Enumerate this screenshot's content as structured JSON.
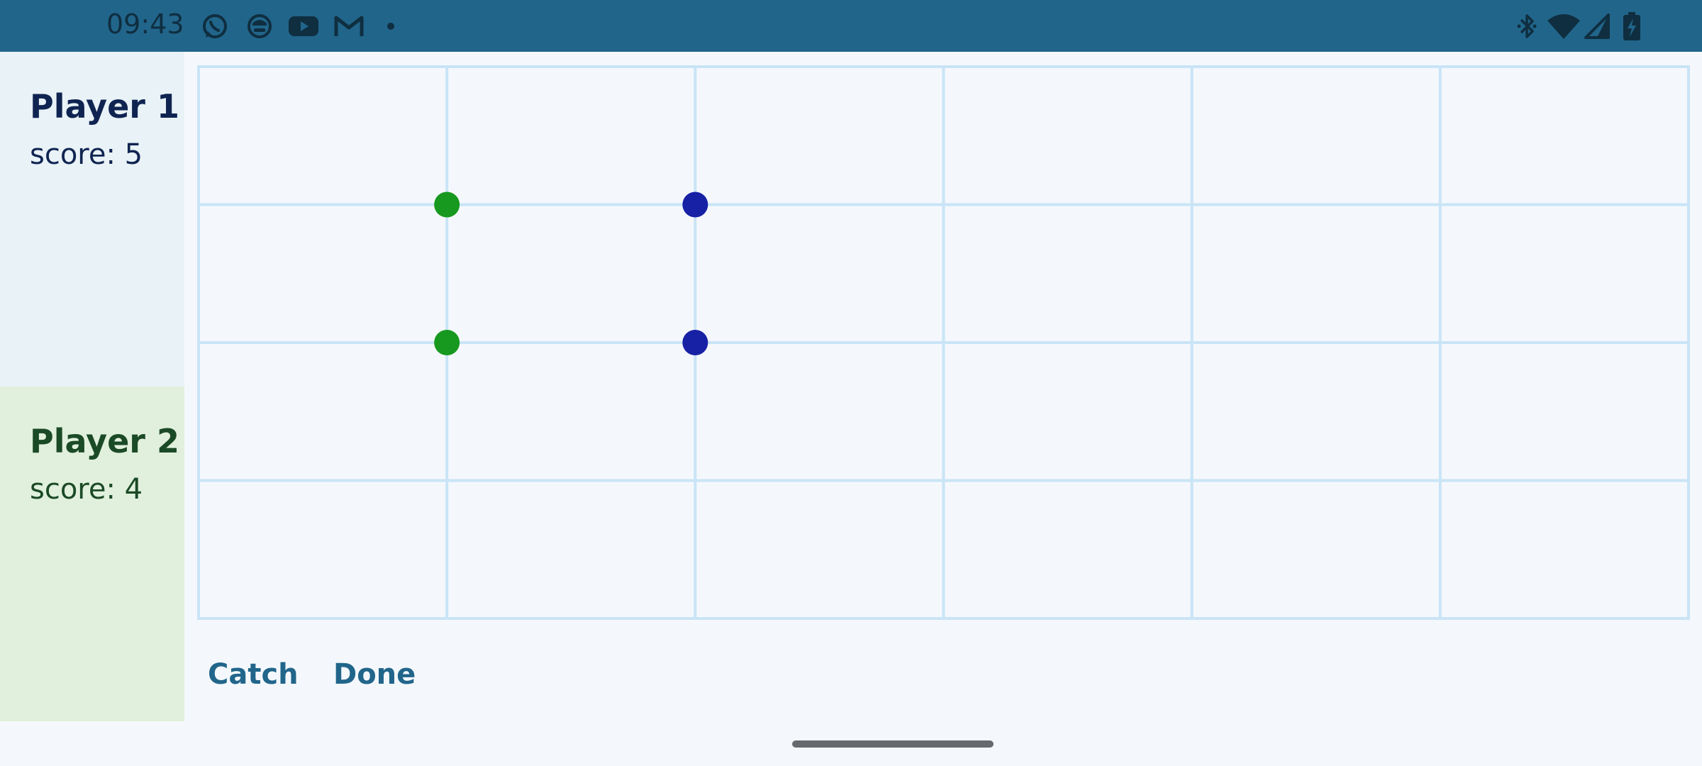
{
  "status_bar": {
    "time": "09:43",
    "left_icons": [
      "whatsapp-icon",
      "app-face-icon",
      "youtube-icon",
      "gmail-icon",
      "dot-icon"
    ],
    "right_icons": [
      "bluetooth-icon",
      "wifi-icon",
      "cell-signal-icon",
      "battery-charging-icon"
    ],
    "background_color": "#21658A",
    "icon_color": "#0F2E40"
  },
  "players": [
    {
      "name": "Player 1",
      "score": "score: 5",
      "panel_color": "#E9F2F6",
      "text_color": "#0F2451"
    },
    {
      "name": "Player 2",
      "score": "score: 4",
      "panel_color": "#E1F0DC",
      "text_color": "#1B4A26"
    }
  ],
  "board": {
    "columns": 6,
    "rows": 4,
    "line_color": "#C9E4F6",
    "dots": [
      {
        "col": 1,
        "row": 1,
        "player": 2,
        "color": "#17981F"
      },
      {
        "col": 1,
        "row": 2,
        "player": 2,
        "color": "#17981F"
      },
      {
        "col": 2,
        "row": 1,
        "player": 1,
        "color": "#1721A5"
      },
      {
        "col": 2,
        "row": 2,
        "player": 1,
        "color": "#1721A5"
      }
    ]
  },
  "actions": {
    "catch_label": "Catch",
    "done_label": "Done",
    "color": "#21658A"
  }
}
